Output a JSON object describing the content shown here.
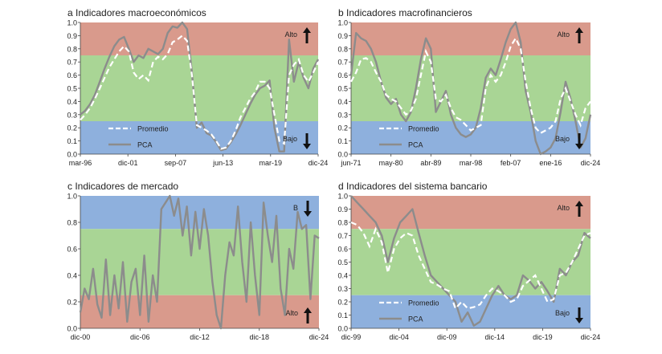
{
  "colors": {
    "high_zone": "#d99a8c",
    "mid_zone": "#a9d595",
    "low_zone": "#8eb0dd",
    "promedio": "#ffffff",
    "pca": "#8c8c8c",
    "arrow": "#111111"
  },
  "icons": {
    "up_arrow": "arrow-up-icon",
    "down_arrow": "arrow-down-icon"
  },
  "chart_data": [
    {
      "id": "a",
      "type": "line",
      "title": "a  Indicadores macroeconómicos",
      "ylim": [
        0,
        1
      ],
      "yticks": [
        "0.0",
        "0.1",
        "0.2",
        "0.3",
        "0.4",
        "0.5",
        "0.6",
        "0.7",
        "0.8",
        "0.9",
        "1.0"
      ],
      "xticks": [
        "mar-96",
        "dic-01",
        "sep-07",
        "jun-13",
        "mar-19",
        "dic-24"
      ],
      "bands": [
        {
          "from": 0.75,
          "to": 1.0,
          "zone": "high"
        },
        {
          "from": 0.25,
          "to": 0.75,
          "zone": "mid"
        },
        {
          "from": 0.0,
          "to": 0.25,
          "zone": "low"
        }
      ],
      "top_label": "Alto",
      "top_arrow": "up",
      "bottom_label": "Bajo",
      "bottom_arrow": "down",
      "legend": [
        "Promedio",
        "PCA"
      ],
      "series": [
        {
          "name": "Promedio",
          "style": "dashed",
          "values": [
            0.26,
            0.3,
            0.35,
            0.42,
            0.5,
            0.58,
            0.66,
            0.72,
            0.78,
            0.82,
            0.78,
            0.62,
            0.57,
            0.6,
            0.56,
            0.7,
            0.74,
            0.72,
            0.76,
            0.85,
            0.87,
            0.9,
            0.86,
            0.6,
            0.22,
            0.2,
            0.18,
            0.15,
            0.1,
            0.04,
            0.05,
            0.1,
            0.18,
            0.28,
            0.35,
            0.42,
            0.47,
            0.55,
            0.55,
            0.5,
            0.3,
            0.1,
            0.08,
            0.6,
            0.68,
            0.72,
            0.6,
            0.55,
            0.62,
            0.7
          ]
        },
        {
          "name": "PCA",
          "style": "solid",
          "values": [
            0.3,
            0.33,
            0.38,
            0.45,
            0.55,
            0.65,
            0.74,
            0.82,
            0.87,
            0.89,
            0.8,
            0.7,
            0.75,
            0.73,
            0.8,
            0.78,
            0.76,
            0.8,
            0.92,
            0.97,
            0.96,
            1.0,
            0.95,
            0.62,
            0.2,
            0.24,
            0.16,
            0.14,
            0.09,
            0.03,
            0.04,
            0.09,
            0.15,
            0.22,
            0.3,
            0.38,
            0.45,
            0.5,
            0.52,
            0.56,
            0.2,
            0.02,
            0.02,
            0.87,
            0.55,
            0.7,
            0.58,
            0.5,
            0.65,
            0.72
          ]
        }
      ]
    },
    {
      "id": "b",
      "type": "line",
      "title": "b  Indicadores macrofinancieros",
      "ylim": [
        0,
        1
      ],
      "yticks": [
        "0.0",
        "0.1",
        "0.2",
        "0.3",
        "0.4",
        "0.5",
        "0.6",
        "0.7",
        "0.8",
        "0.9",
        "1.0"
      ],
      "xticks": [
        "jun-71",
        "may-80",
        "abr-89",
        "mar-98",
        "feb-07",
        "ene-16",
        "dic-24"
      ],
      "bands": [
        {
          "from": 0.75,
          "to": 1.0,
          "zone": "high"
        },
        {
          "from": 0.25,
          "to": 0.75,
          "zone": "mid"
        },
        {
          "from": 0.0,
          "to": 0.25,
          "zone": "low"
        }
      ],
      "top_label": "Alto",
      "top_arrow": "up",
      "bottom_label": "Bajo",
      "bottom_arrow": "down",
      "legend": [
        "Promedio",
        "PCA"
      ],
      "series": [
        {
          "name": "Promedio",
          "style": "dashed",
          "values": [
            0.55,
            0.62,
            0.72,
            0.73,
            0.7,
            0.62,
            0.55,
            0.45,
            0.42,
            0.4,
            0.35,
            0.3,
            0.33,
            0.42,
            0.6,
            0.78,
            0.7,
            0.42,
            0.4,
            0.45,
            0.35,
            0.28,
            0.26,
            0.22,
            0.18,
            0.2,
            0.22,
            0.5,
            0.6,
            0.55,
            0.6,
            0.7,
            0.82,
            0.88,
            0.8,
            0.55,
            0.35,
            0.2,
            0.16,
            0.18,
            0.2,
            0.25,
            0.42,
            0.5,
            0.4,
            0.3,
            0.22,
            0.35,
            0.4
          ]
        },
        {
          "name": "PCA",
          "style": "solid",
          "values": [
            0.6,
            0.92,
            0.88,
            0.86,
            0.8,
            0.7,
            0.55,
            0.43,
            0.38,
            0.42,
            0.3,
            0.25,
            0.32,
            0.5,
            0.72,
            0.88,
            0.8,
            0.32,
            0.4,
            0.48,
            0.3,
            0.2,
            0.15,
            0.13,
            0.15,
            0.2,
            0.35,
            0.58,
            0.65,
            0.6,
            0.72,
            0.85,
            0.95,
            1.0,
            0.85,
            0.48,
            0.32,
            0.1,
            0.0,
            0.02,
            0.05,
            0.12,
            0.32,
            0.55,
            0.42,
            0.25,
            0.05,
            0.12,
            0.3
          ]
        }
      ]
    },
    {
      "id": "c",
      "type": "line",
      "title": "c  Indicadores de mercado",
      "ylim": [
        0,
        1
      ],
      "yticks": [
        "0.0",
        "0.2",
        "0.4",
        "0.6",
        "0.8",
        "1.0"
      ],
      "xticks": [
        "dic-00",
        "dic-06",
        "dic-12",
        "dic-18",
        "dic-24"
      ],
      "bands": [
        {
          "from": 0.75,
          "to": 1.0,
          "zone": "low"
        },
        {
          "from": 0.25,
          "to": 0.75,
          "zone": "mid"
        },
        {
          "from": 0.0,
          "to": 0.25,
          "zone": "high"
        }
      ],
      "top_label": "B",
      "top_arrow": "down",
      "bottom_label": "Alto",
      "bottom_arrow": "up",
      "legend": [],
      "series": [
        {
          "name": "PCA",
          "style": "solid",
          "values": [
            0.12,
            0.3,
            0.22,
            0.45,
            0.18,
            0.08,
            0.52,
            0.1,
            0.4,
            0.15,
            0.5,
            0.05,
            0.35,
            0.45,
            0.1,
            0.55,
            0.05,
            0.4,
            0.2,
            0.9,
            0.95,
            1.0,
            0.85,
            0.98,
            0.7,
            0.92,
            0.55,
            0.88,
            0.6,
            0.9,
            0.7,
            0.35,
            0.1,
            0.0,
            0.4,
            0.65,
            0.55,
            0.92,
            0.5,
            0.2,
            0.8,
            0.4,
            0.1,
            0.95,
            0.7,
            0.5,
            0.85,
            0.3,
            0.1,
            0.6,
            0.45,
            0.88,
            0.75,
            0.78,
            0.22,
            0.7,
            0.68
          ]
        }
      ]
    },
    {
      "id": "d",
      "type": "line",
      "title": "d  Indicadores del sistema bancario",
      "ylim": [
        0,
        1
      ],
      "yticks": [
        "0.0",
        "0.1",
        "0.2",
        "0.3",
        "0.4",
        "0.5",
        "0.6",
        "0.7",
        "0.8",
        "0.9",
        "1.0"
      ],
      "xticks": [
        "dic-99",
        "dic-04",
        "dic-09",
        "dic-14",
        "dic-19",
        "dic-24"
      ],
      "bands": [
        {
          "from": 0.75,
          "to": 1.0,
          "zone": "high"
        },
        {
          "from": 0.25,
          "to": 0.75,
          "zone": "mid"
        },
        {
          "from": 0.0,
          "to": 0.25,
          "zone": "low"
        }
      ],
      "top_label": "Alto",
      "top_arrow": "up",
      "bottom_label": "Bajo",
      "bottom_arrow": "down",
      "legend": [
        "Promedio",
        "PCA"
      ],
      "series": [
        {
          "name": "Promedio",
          "style": "dashed",
          "values": [
            0.8,
            0.78,
            0.72,
            0.62,
            0.75,
            0.65,
            0.42,
            0.6,
            0.68,
            0.72,
            0.7,
            0.55,
            0.45,
            0.35,
            0.33,
            0.3,
            0.28,
            0.15,
            0.2,
            0.15,
            0.16,
            0.18,
            0.25,
            0.3,
            0.28,
            0.25,
            0.2,
            0.22,
            0.32,
            0.36,
            0.4,
            0.3,
            0.2,
            0.22,
            0.4,
            0.42,
            0.5,
            0.6,
            0.7,
            0.72
          ]
        },
        {
          "name": "PCA",
          "style": "solid",
          "values": [
            1.0,
            0.95,
            0.9,
            0.85,
            0.8,
            0.7,
            0.5,
            0.68,
            0.8,
            0.85,
            0.9,
            0.72,
            0.55,
            0.4,
            0.35,
            0.3,
            0.25,
            0.2,
            0.05,
            0.12,
            0.02,
            0.05,
            0.15,
            0.25,
            0.32,
            0.25,
            0.22,
            0.25,
            0.4,
            0.36,
            0.3,
            0.35,
            0.28,
            0.2,
            0.45,
            0.4,
            0.5,
            0.55,
            0.72,
            0.68
          ]
        }
      ]
    }
  ]
}
